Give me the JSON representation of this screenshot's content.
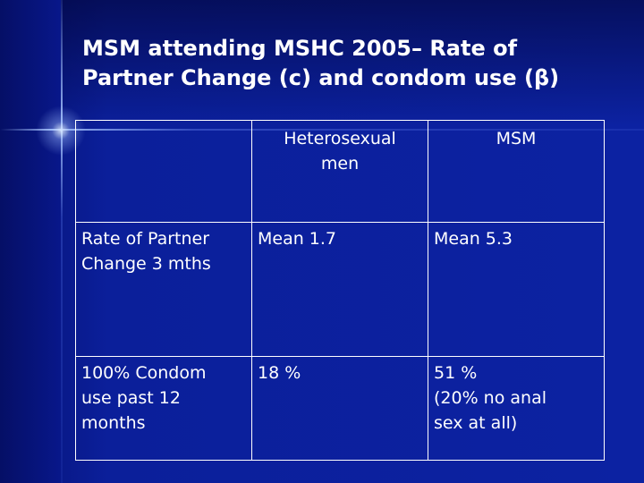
{
  "slide": {
    "title_line1": "MSM attending MSHC 2005– Rate of",
    "title_line2": "Partner Change (c) and condom use (β)"
  },
  "table": {
    "headers": [
      "",
      "Heterosexual men",
      "MSM"
    ],
    "header_lines": {
      "hetero": [
        "Heterosexual",
        "men"
      ],
      "msm": [
        "MSM"
      ]
    },
    "rows": [
      {
        "label_lines": [
          "Rate of Partner",
          "Change 3 mths"
        ],
        "hetero": "Mean 1.7",
        "msm_lines": [
          "Mean 5.3"
        ]
      },
      {
        "label_lines": [
          "100% Condom",
          "use past 12",
          "months"
        ],
        "hetero": "18 %",
        "msm_lines": [
          "51 %",
          "(20% no anal",
          "sex at all)"
        ]
      }
    ]
  },
  "colors": {
    "background": "#0c22a2",
    "text": "#ffffff",
    "grid": "#ffffff"
  }
}
